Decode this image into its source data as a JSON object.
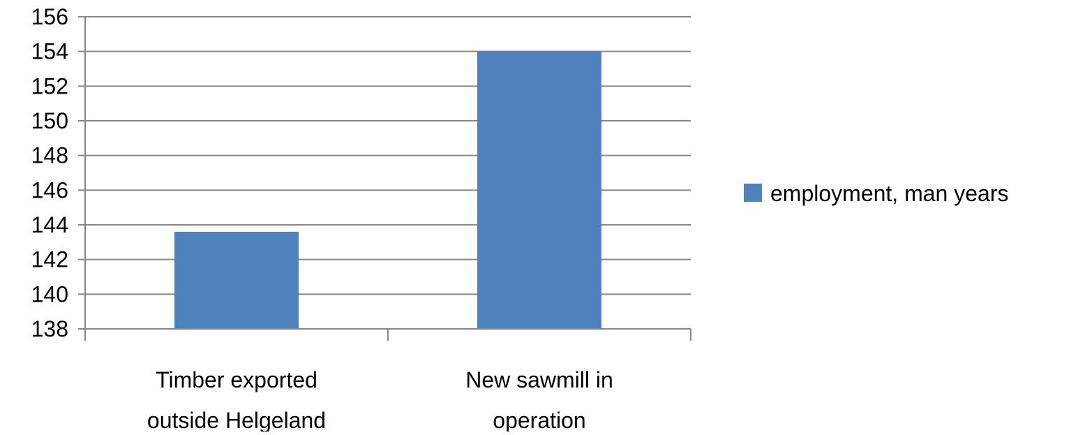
{
  "chart_data": {
    "type": "bar",
    "categories": [
      [
        "Timber exported",
        "outside Helgeland"
      ],
      [
        "New sawmill in",
        "operation"
      ]
    ],
    "series": [
      {
        "name": "employment, man years",
        "values": [
          143.6,
          154.0
        ],
        "color": "#4F81BD"
      }
    ],
    "ylim": [
      138,
      156
    ],
    "yticks": [
      138,
      140,
      142,
      144,
      146,
      148,
      150,
      152,
      154,
      156
    ],
    "grid": true,
    "legend": "right",
    "title": "",
    "xlabel": "",
    "ylabel": ""
  },
  "colors": {
    "gridline": "#868686",
    "axis": "#868686",
    "bar": "#4F81BD"
  }
}
